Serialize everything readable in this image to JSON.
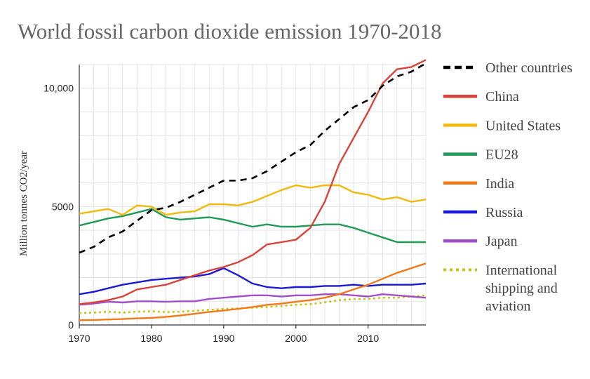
{
  "chart_data": {
    "type": "line",
    "title": "World fossil carbon dioxide emission 1970-2018",
    "ylabel": "Million tonnes CO2/year",
    "xlabel": "",
    "xlim": [
      1970,
      2018
    ],
    "ylim": [
      0,
      11000
    ],
    "x_ticks": [
      1970,
      1980,
      1990,
      2000,
      2010
    ],
    "x_tick_labels": [
      "1970",
      "1980",
      "1990",
      "2000",
      "2010"
    ],
    "y_ticks": [
      0,
      5000,
      10000
    ],
    "y_tick_labels": [
      "0",
      "5000",
      "10,000"
    ],
    "grid": true,
    "legend_position": "right",
    "x": [
      1970,
      1972,
      1974,
      1976,
      1978,
      1980,
      1982,
      1984,
      1986,
      1988,
      1990,
      1992,
      1994,
      1996,
      1998,
      2000,
      2002,
      2004,
      2006,
      2008,
      2010,
      2012,
      2014,
      2016,
      2018
    ],
    "series": [
      {
        "name": "Other countries",
        "color": "#000000",
        "dash": "dashed",
        "values": [
          3050,
          3300,
          3700,
          3950,
          4400,
          4850,
          4950,
          5200,
          5500,
          5800,
          6100,
          6100,
          6200,
          6500,
          6900,
          7300,
          7600,
          8200,
          8700,
          9200,
          9500,
          10100,
          10500,
          10700,
          11050
        ]
      },
      {
        "name": "China",
        "color": "#d9433a",
        "dash": "solid",
        "values": [
          880,
          950,
          1050,
          1200,
          1500,
          1600,
          1700,
          1900,
          2100,
          2300,
          2450,
          2650,
          2950,
          3400,
          3500,
          3600,
          4100,
          5200,
          6800,
          7900,
          9000,
          10200,
          10800,
          10900,
          11200
        ]
      },
      {
        "name": "United States",
        "color": "#f2b90c",
        "dash": "solid",
        "values": [
          4700,
          4800,
          4900,
          4650,
          5050,
          5000,
          4650,
          4750,
          4800,
          5100,
          5100,
          5050,
          5200,
          5450,
          5700,
          5900,
          5800,
          5900,
          5900,
          5600,
          5500,
          5300,
          5400,
          5200,
          5300
        ]
      },
      {
        "name": "EU28",
        "color": "#1f9a57",
        "dash": "solid",
        "values": [
          4200,
          4350,
          4500,
          4600,
          4750,
          4900,
          4550,
          4450,
          4500,
          4550,
          4450,
          4300,
          4150,
          4250,
          4150,
          4150,
          4200,
          4250,
          4250,
          4100,
          3900,
          3700,
          3500,
          3500,
          3500
        ]
      },
      {
        "name": "India",
        "color": "#f07a1a",
        "dash": "solid",
        "values": [
          200,
          210,
          230,
          250,
          280,
          300,
          340,
          400,
          470,
          550,
          610,
          680,
          760,
          850,
          900,
          980,
          1050,
          1150,
          1300,
          1500,
          1700,
          1950,
          2200,
          2400,
          2600
        ]
      },
      {
        "name": "Russia",
        "color": "#1a1ad6",
        "dash": "solid",
        "values": [
          1300,
          1400,
          1550,
          1700,
          1800,
          1900,
          1950,
          2000,
          2050,
          2150,
          2400,
          2100,
          1750,
          1600,
          1550,
          1600,
          1600,
          1650,
          1650,
          1700,
          1650,
          1700,
          1700,
          1700,
          1750
        ]
      },
      {
        "name": "Japan",
        "color": "#a34fc8",
        "dash": "solid",
        "values": [
          850,
          900,
          980,
          950,
          1000,
          1000,
          980,
          1000,
          1000,
          1100,
          1150,
          1200,
          1250,
          1250,
          1200,
          1250,
          1250,
          1300,
          1300,
          1250,
          1200,
          1300,
          1250,
          1200,
          1150
        ]
      },
      {
        "name": "International shipping and aviation",
        "name_lines": [
          "International",
          "shipping and",
          "aviation"
        ],
        "color": "#c9c21a",
        "dash": "dotted",
        "values": [
          500,
          520,
          560,
          520,
          560,
          580,
          540,
          560,
          600,
          640,
          680,
          700,
          730,
          760,
          800,
          850,
          880,
          950,
          1050,
          1100,
          1100,
          1150,
          1150,
          1200,
          1250
        ]
      }
    ]
  }
}
